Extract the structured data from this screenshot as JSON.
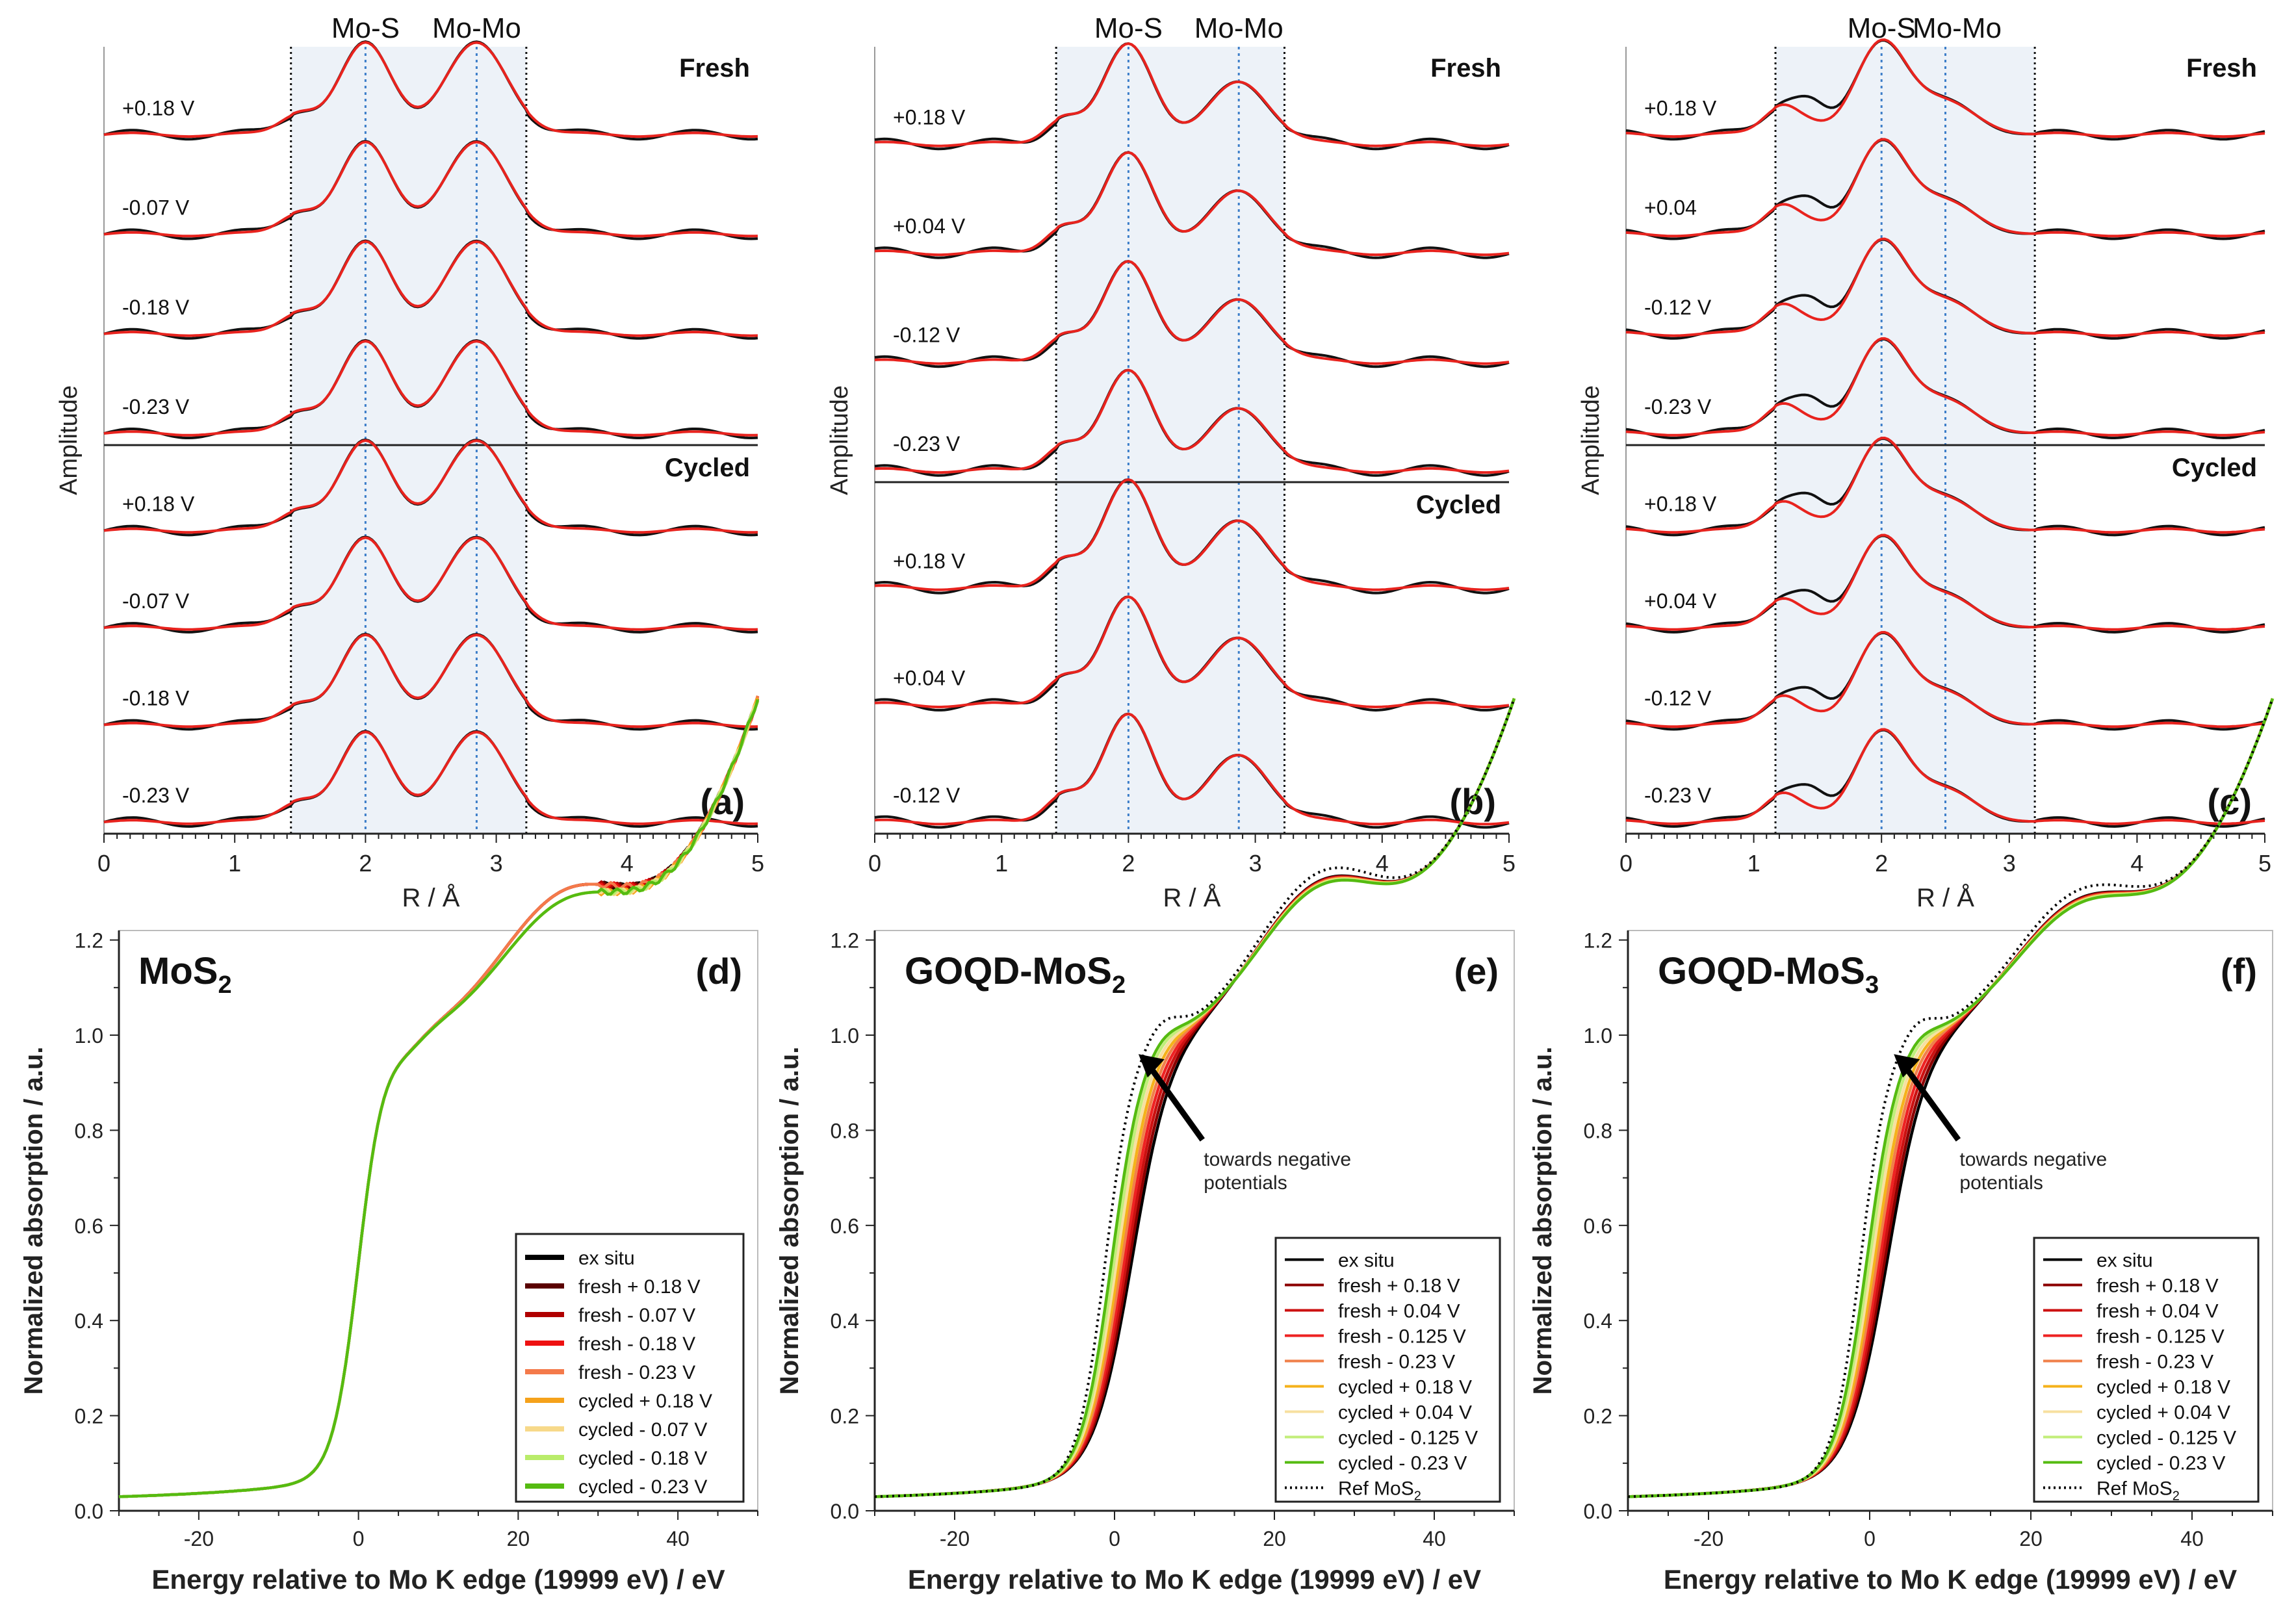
{
  "figure": {
    "top": {
      "x_label": "R / Å",
      "y_label": "Amplitude",
      "x_ticks": [
        "0",
        "1",
        "2",
        "3",
        "4",
        "5"
      ],
      "panels": [
        {
          "id": "a",
          "panel_label": "(a)",
          "mos_label": "Mo-S",
          "momo_label": "Mo-Mo",
          "mos_r": 2.0,
          "momo_r": 2.85,
          "window": [
            1.43,
            3.23
          ],
          "fresh_label": "Fresh",
          "cycled_label": "Cycled",
          "fresh_potentials": [
            "+0.18 V",
            "-0.07 V",
            "-0.18 V",
            "-0.23 V"
          ],
          "cycled_potentials": [
            "+0.18 V",
            "-0.07 V",
            "-0.18 V",
            "-0.23 V"
          ],
          "peak_heights": [
            1.0,
            1.0
          ],
          "shoulder": 0.22
        },
        {
          "id": "b",
          "panel_label": "(b)",
          "mos_label": "Mo-S",
          "momo_label": "Mo-Mo",
          "mos_r": 2.0,
          "momo_r": 2.87,
          "window": [
            1.43,
            3.23
          ],
          "fresh_label": "Fresh",
          "cycled_label": "Cycled",
          "fresh_potentials": [
            "+0.18 V",
            "+0.04 V",
            "-0.12 V",
            "-0.23 V"
          ],
          "cycled_potentials": [
            "+0.18 V",
            "+0.04 V",
            "-0.12 V"
          ],
          "peak_heights": [
            1.0,
            0.62
          ],
          "shoulder": 0.25
        },
        {
          "id": "c",
          "panel_label": "(c)",
          "mos_label": "Mo-S",
          "momo_label": "Mo-Mo",
          "mos_r": 2.0,
          "momo_r": 2.5,
          "window": [
            1.17,
            3.2
          ],
          "fresh_label": "Fresh",
          "cycled_label": "Cycled",
          "fresh_potentials": [
            "+0.18 V",
            "+0.04",
            "-0.12 V",
            "-0.23 V"
          ],
          "cycled_potentials": [
            "+0.18 V",
            "+0.04 V",
            "-0.12 V",
            "-0.23 V"
          ],
          "peak_heights": [
            1.0,
            0.35
          ],
          "shoulder": 0.32
        }
      ]
    },
    "bottom": {
      "x_label": "Energy relative to Mo K edge (19999 eV) / eV",
      "y_label": "Normalized absorption / a.u.",
      "y_ticks": [
        "0.0",
        "0.2",
        "0.4",
        "0.6",
        "0.8",
        "1.0",
        "1.2"
      ],
      "x_ticks": [
        "-20",
        "0",
        "20",
        "40"
      ],
      "panels": [
        {
          "id": "d",
          "panel_label": "(d)",
          "title_main": "MoS",
          "title_sub": "2",
          "arrow_text": [],
          "legend": [
            {
              "label": "ex situ",
              "color": "#000000",
              "dotted": false
            },
            {
              "label": "fresh + 0.18 V",
              "color": "#5a0000",
              "dotted": false
            },
            {
              "label": "fresh - 0.07 V",
              "color": "#b00000",
              "dotted": false
            },
            {
              "label": "fresh - 0.18 V",
              "color": "#ee1111",
              "dotted": false
            },
            {
              "label": "fresh - 0.23 V",
              "color": "#f47a4a",
              "dotted": false
            },
            {
              "label": "cycled + 0.18 V",
              "color": "#f5a21b",
              "dotted": false
            },
            {
              "label": "cycled - 0.07 V",
              "color": "#f7d98a",
              "dotted": false
            },
            {
              "label": "cycled - 0.18 V",
              "color": "#b9ec6a",
              "dotted": false
            },
            {
              "label": "cycled - 0.23 V",
              "color": "#55bb11",
              "dotted": false
            }
          ]
        },
        {
          "id": "e",
          "panel_label": "(e)",
          "title_main": "GOQD-MoS",
          "title_sub": "2",
          "arrow_text": [
            "towards negative",
            "potentials"
          ],
          "legend": [
            {
              "label": "ex situ",
              "color": "#000000",
              "dotted": false
            },
            {
              "label": "fresh + 0.18 V",
              "color": "#8b0000",
              "dotted": false
            },
            {
              "label": "fresh + 0.04 V",
              "color": "#cc1111",
              "dotted": false
            },
            {
              "label": "fresh - 0.125 V",
              "color": "#ee2222",
              "dotted": false
            },
            {
              "label": "fresh - 0.23 V",
              "color": "#f0804a",
              "dotted": false
            },
            {
              "label": "cycled + 0.18 V",
              "color": "#f5b21b",
              "dotted": false
            },
            {
              "label": "cycled + 0.04 V",
              "color": "#f7e0a0",
              "dotted": false
            },
            {
              "label": "cycled - 0.125 V",
              "color": "#c2ee7a",
              "dotted": false
            },
            {
              "label": "cycled - 0.23 V",
              "color": "#55bb11",
              "dotted": false
            },
            {
              "label": "Ref MoS",
              "sub": "2",
              "color": "#000000",
              "dotted": true
            }
          ]
        },
        {
          "id": "f",
          "panel_label": "(f)",
          "title_main": "GOQD-MoS",
          "title_sub": "3",
          "arrow_text": [
            "towards negative",
            "potentials"
          ],
          "legend": [
            {
              "label": "ex situ",
              "color": "#000000",
              "dotted": false
            },
            {
              "label": "fresh + 0.18 V",
              "color": "#8b0000",
              "dotted": false
            },
            {
              "label": "fresh + 0.04 V",
              "color": "#cc1111",
              "dotted": false
            },
            {
              "label": "fresh - 0.125 V",
              "color": "#ee2222",
              "dotted": false
            },
            {
              "label": "fresh - 0.23 V",
              "color": "#f0804a",
              "dotted": false
            },
            {
              "label": "cycled + 0.18 V",
              "color": "#f5b21b",
              "dotted": false
            },
            {
              "label": "cycled + 0.04 V",
              "color": "#f7e0a0",
              "dotted": false
            },
            {
              "label": "cycled - 0.125 V",
              "color": "#c2ee7a",
              "dotted": false
            },
            {
              "label": "cycled - 0.23 V",
              "color": "#55bb11",
              "dotted": false
            },
            {
              "label": "Ref MoS",
              "sub": "2",
              "color": "#000000",
              "dotted": true
            }
          ]
        }
      ]
    }
  },
  "chart_data": [
    {
      "type": "line",
      "panel": "a",
      "title": "",
      "xlabel": "R / Å",
      "ylabel": "Amplitude",
      "xlim": [
        0,
        5
      ],
      "groups": [
        "Fresh",
        "Cycled"
      ],
      "series": [
        {
          "name": "",
          "color": "#000000"
        },
        {
          "name": "",
          "color": "#e8231e"
        }
      ],
      "markers": {
        "Mo-S": 2.0,
        "Mo-Mo": 2.85
      }
    },
    {
      "type": "line",
      "panel": "b",
      "title": "",
      "xlabel": "R / Å",
      "ylabel": "Amplitude",
      "xlim": [
        0,
        5
      ],
      "groups": [
        "Fresh",
        "Cycled"
      ],
      "series": [
        {
          "name": "",
          "color": "#000000"
        },
        {
          "name": "",
          "color": "#e8231e"
        }
      ],
      "markers": {
        "Mo-S": 2.0,
        "Mo-Mo": 2.87
      }
    },
    {
      "type": "line",
      "panel": "c",
      "title": "",
      "xlabel": "R / Å",
      "ylabel": "Amplitude",
      "xlim": [
        0,
        5
      ],
      "groups": [
        "Fresh",
        "Cycled"
      ],
      "series": [
        {
          "name": "",
          "color": "#000000"
        },
        {
          "name": "",
          "color": "#e8231e"
        }
      ],
      "markers": {
        "Mo-S": 2.0,
        "Mo-Mo": 2.5
      }
    },
    {
      "type": "line",
      "panel": "d",
      "title": "MoS2",
      "xlabel": "Energy relative to Mo K edge (19999 eV) / eV",
      "ylabel": "Normalized absorption / a.u.",
      "xlim": [
        -30,
        50
      ],
      "ylim": [
        0,
        1.22
      ],
      "x": [
        -30,
        -20,
        -10,
        -5,
        -2,
        0,
        2,
        4,
        6,
        10,
        15,
        20,
        25,
        30,
        35,
        40,
        45,
        50
      ],
      "series": [
        {
          "name": "ex situ",
          "values": [
            0.02,
            0.05,
            0.12,
            0.22,
            0.33,
            0.5,
            0.72,
            0.88,
            0.92,
            0.93,
            1.02,
            1.1,
            1.15,
            1.1,
            1.03,
            0.98,
            0.95,
            0.93
          ]
        },
        {
          "name": "cycled - 0.23 V",
          "values": [
            0.02,
            0.05,
            0.12,
            0.22,
            0.33,
            0.5,
            0.72,
            0.88,
            0.92,
            0.93,
            1.01,
            1.08,
            1.13,
            1.09,
            1.03,
            0.99,
            0.95,
            0.93
          ]
        }
      ]
    },
    {
      "type": "line",
      "panel": "e",
      "title": "GOQD-MoS2",
      "xlabel": "Energy relative to Mo K edge (19999 eV) / eV",
      "ylabel": "Normalized absorption / a.u.",
      "xlim": [
        -30,
        50
      ],
      "ylim": [
        0,
        1.22
      ],
      "x": [
        -30,
        -20,
        -10,
        -5,
        -2,
        0,
        2,
        5,
        8,
        10,
        15,
        20,
        25,
        30,
        35,
        40,
        45,
        50
      ],
      "series": [
        {
          "name": "fresh + 0.18 V",
          "values": [
            0.02,
            0.05,
            0.12,
            0.22,
            0.31,
            0.45,
            0.6,
            0.74,
            0.82,
            0.86,
            0.98,
            1.09,
            1.14,
            1.1,
            1.04,
            1.0,
            0.97,
            0.95
          ]
        },
        {
          "name": "cycled - 0.23 V",
          "values": [
            0.02,
            0.05,
            0.12,
            0.22,
            0.32,
            0.47,
            0.65,
            0.83,
            0.9,
            0.91,
            0.99,
            1.08,
            1.13,
            1.08,
            1.01,
            0.97,
            0.95,
            0.93
          ]
        },
        {
          "name": "Ref MoS2",
          "values": [
            0.02,
            0.05,
            0.12,
            0.22,
            0.33,
            0.5,
            0.72,
            0.88,
            0.91,
            0.92,
            1.0,
            1.08,
            1.13,
            1.09,
            1.02,
            0.98,
            0.95,
            0.93
          ]
        }
      ]
    },
    {
      "type": "line",
      "panel": "f",
      "title": "GOQD-MoS3",
      "xlabel": "Energy relative to Mo K edge (19999 eV) / eV",
      "ylabel": "Normalized absorption / a.u.",
      "xlim": [
        -30,
        50
      ],
      "ylim": [
        0,
        1.22
      ],
      "x": [
        -30,
        -20,
        -10,
        -5,
        -2,
        0,
        2,
        5,
        8,
        10,
        15,
        20,
        25,
        30,
        35,
        40,
        45,
        50
      ],
      "series": [
        {
          "name": "fresh + 0.18 V",
          "values": [
            0.02,
            0.05,
            0.12,
            0.22,
            0.31,
            0.46,
            0.6,
            0.73,
            0.82,
            0.87,
            1.0,
            1.08,
            1.11,
            1.1,
            1.06,
            1.0,
            0.97,
            0.96
          ]
        },
        {
          "name": "cycled - 0.23 V",
          "values": [
            0.02,
            0.05,
            0.12,
            0.22,
            0.32,
            0.47,
            0.64,
            0.8,
            0.88,
            0.92,
            1.02,
            1.08,
            1.11,
            1.09,
            1.04,
            0.99,
            0.96,
            0.95
          ]
        },
        {
          "name": "Ref MoS2",
          "values": [
            0.02,
            0.05,
            0.12,
            0.22,
            0.33,
            0.5,
            0.74,
            0.9,
            0.92,
            0.93,
            1.01,
            1.09,
            1.14,
            1.1,
            1.02,
            0.97,
            0.95,
            0.93
          ]
        }
      ]
    }
  ]
}
